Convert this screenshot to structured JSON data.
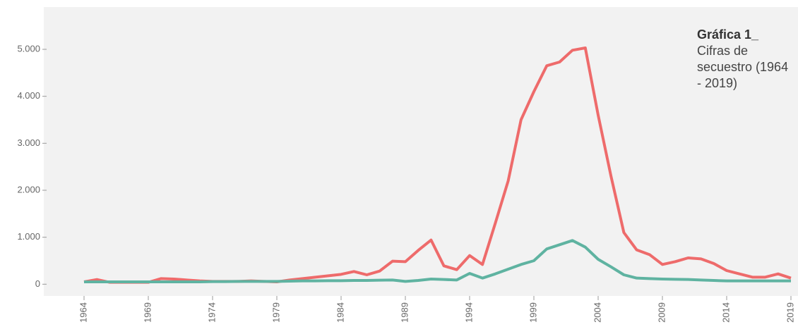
{
  "chart_data": {
    "type": "line",
    "title": "Gráfica 1_",
    "subtitle": "Cifras de secuestro (1964 - 2019)",
    "x": [
      1964,
      1965,
      1966,
      1967,
      1968,
      1969,
      1970,
      1971,
      1972,
      1973,
      1974,
      1975,
      1976,
      1977,
      1978,
      1979,
      1980,
      1981,
      1982,
      1983,
      1984,
      1985,
      1986,
      1987,
      1988,
      1989,
      1990,
      1991,
      1992,
      1993,
      1994,
      1995,
      1996,
      1997,
      1998,
      1999,
      2000,
      2001,
      2002,
      2003,
      2004,
      2005,
      2006,
      2007,
      2008,
      2009,
      2010,
      2011,
      2012,
      2013,
      2014,
      2015,
      2016,
      2017,
      2018,
      2019
    ],
    "series": [
      {
        "color": "#ee6b6b",
        "values": [
          50,
          100,
          40,
          40,
          40,
          40,
          120,
          110,
          90,
          70,
          60,
          60,
          60,
          70,
          60,
          50,
          90,
          120,
          150,
          180,
          210,
          270,
          200,
          280,
          490,
          480,
          720,
          940,
          390,
          310,
          610,
          420,
          1300,
          2200,
          3500,
          4100,
          4650,
          4730,
          4980,
          5030,
          3600,
          2300,
          1100,
          730,
          630,
          420,
          480,
          560,
          540,
          440,
          290,
          220,
          150,
          150,
          220,
          130
        ]
      },
      {
        "color": "#5fb3a1",
        "values": [
          50,
          50,
          50,
          50,
          50,
          50,
          50,
          50,
          50,
          50,
          55,
          55,
          60,
          60,
          60,
          60,
          65,
          70,
          70,
          75,
          75,
          80,
          80,
          85,
          90,
          60,
          80,
          110,
          100,
          90,
          230,
          130,
          220,
          320,
          420,
          500,
          750,
          840,
          930,
          790,
          530,
          370,
          200,
          130,
          120,
          110,
          105,
          100,
          90,
          80,
          70,
          70,
          70,
          70,
          70,
          70
        ]
      }
    ],
    "xlim": [
      1964,
      2019
    ],
    "xticks": [
      1964,
      1969,
      1974,
      1979,
      1984,
      1989,
      1994,
      1999,
      2004,
      2009,
      2014,
      2019
    ],
    "ylim": [
      -250,
      5900
    ],
    "yticks": [
      0,
      {
        "value": 1000,
        "label": "1.000"
      },
      {
        "value": 2000,
        "label": "2.000"
      },
      {
        "value": 3000,
        "label": "3.000"
      },
      {
        "value": 4000,
        "label": "4.000"
      },
      {
        "value": 5000,
        "label": "5.000"
      }
    ],
    "grid": false
  }
}
